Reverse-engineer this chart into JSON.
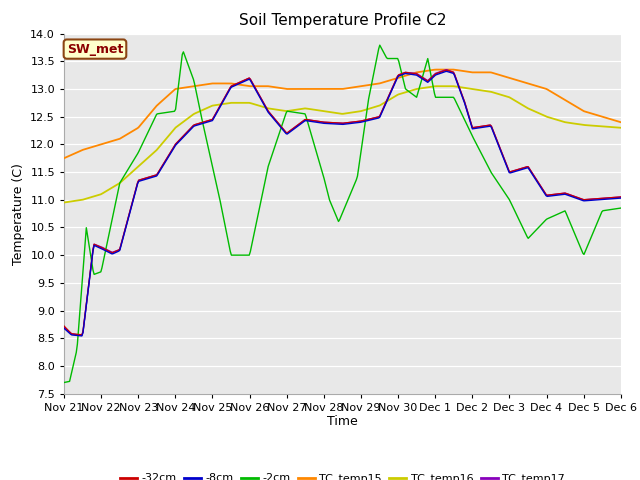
{
  "title": "Soil Temperature Profile C2",
  "xlabel": "Time",
  "ylabel": "Temperature (C)",
  "ylim": [
    7.5,
    14.0
  ],
  "yticks": [
    7.5,
    8.0,
    8.5,
    9.0,
    9.5,
    10.0,
    10.5,
    11.0,
    11.5,
    12.0,
    12.5,
    13.0,
    13.5,
    14.0
  ],
  "sw_met_label": "SW_met",
  "legend_entries": [
    "-32cm",
    "-8cm",
    "-2cm",
    "TC_temp15",
    "TC_temp16",
    "TC_temp17"
  ],
  "colors": {
    "-32cm": "#cc0000",
    "-8cm": "#0000cc",
    "-2cm": "#00bb00",
    "TC_temp15": "#ff8800",
    "TC_temp16": "#cccc00",
    "TC_temp17": "#8800bb"
  },
  "x_tick_labels": [
    "Nov 21",
    "Nov 22",
    "Nov 23",
    "Nov 24",
    "Nov 25",
    "Nov 26",
    "Nov 27",
    "Nov 28",
    "Nov 29",
    "Nov 30",
    "Dec 1",
    "Dec 2",
    "Dec 3",
    "Dec 4",
    "Dec 5",
    "Dec 6"
  ],
  "background_color": "#ffffff",
  "plot_bg_color": "#e8e8e8"
}
